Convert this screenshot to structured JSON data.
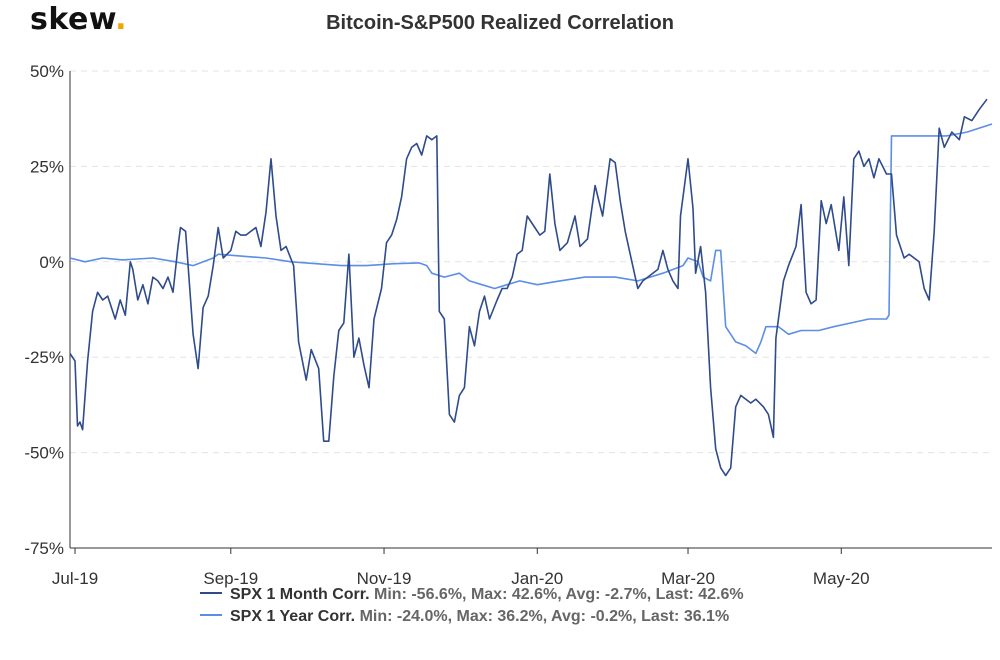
{
  "brand": {
    "logo_text": "skew",
    "logo_dot": "."
  },
  "chart_data": {
    "type": "line",
    "title": "Bitcoin-S&P500 Realized Correlation",
    "xlabel": "",
    "ylabel": "",
    "ylim": [
      -75,
      50
    ],
    "xlim": [
      "2019-06-29",
      "2020-06-30"
    ],
    "yticks": [
      "50%",
      "25%",
      "0%",
      "-25%",
      "-50%",
      "-75%"
    ],
    "ytick_values": [
      50,
      25,
      0,
      -25,
      -50,
      -75
    ],
    "xticks": [
      {
        "label": "Jul-19",
        "date": "2019-07-01"
      },
      {
        "label": "Sep-19",
        "date": "2019-09-01"
      },
      {
        "label": "Nov-19",
        "date": "2019-11-01"
      },
      {
        "label": "Jan-20",
        "date": "2020-01-01"
      },
      {
        "label": "Mar-20",
        "date": "2020-03-01"
      },
      {
        "label": "May-20",
        "date": "2020-05-01"
      }
    ],
    "grid": true,
    "legend_position": "bottom",
    "series": [
      {
        "name": "SPX 1 Month Corr.",
        "color": "#2f4b8c",
        "stats": "Min: -56.6%, Max: 42.6%, Avg: -2.7%, Last: 42.6%",
        "points": [
          [
            "2019-06-29",
            -24
          ],
          [
            "2019-07-01",
            -26
          ],
          [
            "2019-07-02",
            -43
          ],
          [
            "2019-07-03",
            -42
          ],
          [
            "2019-07-04",
            -44
          ],
          [
            "2019-07-06",
            -26
          ],
          [
            "2019-07-08",
            -13
          ],
          [
            "2019-07-10",
            -8
          ],
          [
            "2019-07-12",
            -10
          ],
          [
            "2019-07-14",
            -9
          ],
          [
            "2019-07-17",
            -15
          ],
          [
            "2019-07-19",
            -10
          ],
          [
            "2019-07-21",
            -14
          ],
          [
            "2019-07-23",
            0
          ],
          [
            "2019-07-24",
            -2
          ],
          [
            "2019-07-26",
            -10
          ],
          [
            "2019-07-28",
            -6
          ],
          [
            "2019-07-30",
            -11
          ],
          [
            "2019-08-01",
            -4
          ],
          [
            "2019-08-03",
            -5
          ],
          [
            "2019-08-05",
            -7
          ],
          [
            "2019-08-07",
            -4
          ],
          [
            "2019-08-09",
            -8
          ],
          [
            "2019-08-11",
            4
          ],
          [
            "2019-08-12",
            9
          ],
          [
            "2019-08-14",
            8
          ],
          [
            "2019-08-17",
            -19
          ],
          [
            "2019-08-19",
            -28
          ],
          [
            "2019-08-21",
            -12
          ],
          [
            "2019-08-23",
            -9
          ],
          [
            "2019-08-25",
            -1
          ],
          [
            "2019-08-27",
            9
          ],
          [
            "2019-08-29",
            1
          ],
          [
            "2019-09-01",
            3
          ],
          [
            "2019-09-03",
            8
          ],
          [
            "2019-09-05",
            7
          ],
          [
            "2019-09-07",
            7
          ],
          [
            "2019-09-09",
            8
          ],
          [
            "2019-09-11",
            9
          ],
          [
            "2019-09-13",
            4
          ],
          [
            "2019-09-15",
            13
          ],
          [
            "2019-09-17",
            27
          ],
          [
            "2019-09-19",
            12
          ],
          [
            "2019-09-21",
            3
          ],
          [
            "2019-09-23",
            4
          ],
          [
            "2019-09-26",
            -1
          ],
          [
            "2019-09-28",
            -21
          ],
          [
            "2019-10-01",
            -31
          ],
          [
            "2019-10-03",
            -23
          ],
          [
            "2019-10-06",
            -28
          ],
          [
            "2019-10-08",
            -47
          ],
          [
            "2019-10-10",
            -47
          ],
          [
            "2019-10-12",
            -30
          ],
          [
            "2019-10-14",
            -18
          ],
          [
            "2019-10-16",
            -16
          ],
          [
            "2019-10-18",
            2
          ],
          [
            "2019-10-20",
            -25
          ],
          [
            "2019-10-22",
            -20
          ],
          [
            "2019-10-24",
            -27
          ],
          [
            "2019-10-26",
            -33
          ],
          [
            "2019-10-28",
            -15
          ],
          [
            "2019-10-31",
            -7
          ],
          [
            "2019-11-02",
            5
          ],
          [
            "2019-11-04",
            7
          ],
          [
            "2019-11-06",
            11
          ],
          [
            "2019-11-08",
            17
          ],
          [
            "2019-11-10",
            27
          ],
          [
            "2019-11-12",
            30
          ],
          [
            "2019-11-14",
            31
          ],
          [
            "2019-11-16",
            28
          ],
          [
            "2019-11-18",
            33
          ],
          [
            "2019-11-20",
            32
          ],
          [
            "2019-11-22",
            33
          ],
          [
            "2019-11-23",
            -13
          ],
          [
            "2019-11-25",
            -15
          ],
          [
            "2019-11-27",
            -40
          ],
          [
            "2019-11-29",
            -42
          ],
          [
            "2019-12-01",
            -35
          ],
          [
            "2019-12-03",
            -33
          ],
          [
            "2019-12-05",
            -17
          ],
          [
            "2019-12-07",
            -22
          ],
          [
            "2019-12-09",
            -13
          ],
          [
            "2019-12-11",
            -9
          ],
          [
            "2019-12-13",
            -15
          ],
          [
            "2019-12-16",
            -10
          ],
          [
            "2019-12-18",
            -7
          ],
          [
            "2019-12-20",
            -7
          ],
          [
            "2019-12-22",
            -4
          ],
          [
            "2019-12-24",
            2
          ],
          [
            "2019-12-26",
            3
          ],
          [
            "2019-12-28",
            12
          ],
          [
            "2019-12-31",
            9
          ],
          [
            "2020-01-02",
            7
          ],
          [
            "2020-01-04",
            8
          ],
          [
            "2020-01-06",
            23
          ],
          [
            "2020-01-08",
            10
          ],
          [
            "2020-01-10",
            3
          ],
          [
            "2020-01-13",
            5
          ],
          [
            "2020-01-16",
            12
          ],
          [
            "2020-01-18",
            4
          ],
          [
            "2020-01-21",
            6
          ],
          [
            "2020-01-24",
            20
          ],
          [
            "2020-01-27",
            12
          ],
          [
            "2020-01-30",
            27
          ],
          [
            "2020-02-01",
            26
          ],
          [
            "2020-02-03",
            16
          ],
          [
            "2020-02-05",
            8
          ],
          [
            "2020-02-08",
            -1
          ],
          [
            "2020-02-10",
            -7
          ],
          [
            "2020-02-12",
            -5
          ],
          [
            "2020-02-14",
            -4
          ],
          [
            "2020-02-16",
            -3
          ],
          [
            "2020-02-18",
            -2
          ],
          [
            "2020-02-20",
            3
          ],
          [
            "2020-02-22",
            -2
          ],
          [
            "2020-02-24",
            -5
          ],
          [
            "2020-02-26",
            -7
          ],
          [
            "2020-02-27",
            12
          ],
          [
            "2020-03-01",
            27
          ],
          [
            "2020-03-03",
            14
          ],
          [
            "2020-03-04",
            -3
          ],
          [
            "2020-03-06",
            4
          ],
          [
            "2020-03-08",
            -8
          ],
          [
            "2020-03-10",
            -33
          ],
          [
            "2020-03-12",
            -49
          ],
          [
            "2020-03-14",
            -54
          ],
          [
            "2020-03-16",
            -56
          ],
          [
            "2020-03-18",
            -54
          ],
          [
            "2020-03-20",
            -38
          ],
          [
            "2020-03-22",
            -35
          ],
          [
            "2020-03-24",
            -36
          ],
          [
            "2020-03-26",
            -37
          ],
          [
            "2020-03-28",
            -36
          ],
          [
            "2020-03-31",
            -38
          ],
          [
            "2020-04-02",
            -40
          ],
          [
            "2020-04-04",
            -46
          ],
          [
            "2020-04-05",
            -20
          ],
          [
            "2020-04-08",
            -5
          ],
          [
            "2020-04-10",
            -1
          ],
          [
            "2020-04-13",
            4
          ],
          [
            "2020-04-15",
            15
          ],
          [
            "2020-04-17",
            -8
          ],
          [
            "2020-04-19",
            -11
          ],
          [
            "2020-04-21",
            -10
          ],
          [
            "2020-04-23",
            16
          ],
          [
            "2020-04-25",
            10
          ],
          [
            "2020-04-27",
            15
          ],
          [
            "2020-04-30",
            3
          ],
          [
            "2020-05-02",
            17
          ],
          [
            "2020-05-04",
            -1
          ],
          [
            "2020-05-06",
            27
          ],
          [
            "2020-05-08",
            29
          ],
          [
            "2020-05-10",
            25
          ],
          [
            "2020-05-12",
            27
          ],
          [
            "2020-05-14",
            22
          ],
          [
            "2020-05-16",
            27
          ],
          [
            "2020-05-19",
            23
          ],
          [
            "2020-05-21",
            23
          ],
          [
            "2020-05-23",
            7
          ],
          [
            "2020-05-26",
            1
          ],
          [
            "2020-05-28",
            2
          ],
          [
            "2020-06-01",
            0
          ],
          [
            "2020-06-03",
            -7
          ],
          [
            "2020-06-05",
            -10
          ],
          [
            "2020-06-07",
            8
          ],
          [
            "2020-06-09",
            35
          ],
          [
            "2020-06-11",
            30
          ],
          [
            "2020-06-14",
            34
          ],
          [
            "2020-06-17",
            32
          ],
          [
            "2020-06-19",
            38
          ],
          [
            "2020-06-22",
            37
          ],
          [
            "2020-06-25",
            40
          ],
          [
            "2020-06-28",
            42.6
          ]
        ]
      },
      {
        "name": "SPX 1 Year Corr.",
        "color": "#5b8ee6",
        "stats": "Min: -24.0%, Max: 36.2%, Avg: -0.2%, Last: 36.1%",
        "points": [
          [
            "2019-06-29",
            1
          ],
          [
            "2019-07-05",
            0
          ],
          [
            "2019-07-12",
            1
          ],
          [
            "2019-07-20",
            0.5
          ],
          [
            "2019-08-01",
            1
          ],
          [
            "2019-08-10",
            0
          ],
          [
            "2019-08-17",
            -1
          ],
          [
            "2019-08-25",
            1
          ],
          [
            "2019-08-27",
            2
          ],
          [
            "2019-09-05",
            1.5
          ],
          [
            "2019-09-15",
            1
          ],
          [
            "2019-09-25",
            0
          ],
          [
            "2019-10-05",
            -0.5
          ],
          [
            "2019-10-15",
            -1
          ],
          [
            "2019-10-25",
            -1
          ],
          [
            "2019-11-05",
            -0.5
          ],
          [
            "2019-11-15",
            -0.3
          ],
          [
            "2019-11-18",
            -1
          ],
          [
            "2019-11-20",
            -3
          ],
          [
            "2019-11-25",
            -4
          ],
          [
            "2019-12-01",
            -3
          ],
          [
            "2019-12-05",
            -5
          ],
          [
            "2019-12-10",
            -6
          ],
          [
            "2019-12-15",
            -7
          ],
          [
            "2019-12-20",
            -6
          ],
          [
            "2019-12-25",
            -5
          ],
          [
            "2020-01-01",
            -6
          ],
          [
            "2020-01-10",
            -5
          ],
          [
            "2020-01-20",
            -4
          ],
          [
            "2020-02-01",
            -4
          ],
          [
            "2020-02-10",
            -5
          ],
          [
            "2020-02-20",
            -3
          ],
          [
            "2020-02-28",
            -1
          ],
          [
            "2020-03-01",
            1
          ],
          [
            "2020-03-05",
            0
          ],
          [
            "2020-03-07",
            -4
          ],
          [
            "2020-03-10",
            -5
          ],
          [
            "2020-03-12",
            3
          ],
          [
            "2020-03-14",
            3
          ],
          [
            "2020-03-16",
            -17
          ],
          [
            "2020-03-20",
            -21
          ],
          [
            "2020-03-24",
            -22
          ],
          [
            "2020-03-28",
            -24
          ],
          [
            "2020-03-30",
            -21
          ],
          [
            "2020-04-01",
            -17
          ],
          [
            "2020-04-06",
            -17
          ],
          [
            "2020-04-10",
            -19
          ],
          [
            "2020-04-15",
            -18
          ],
          [
            "2020-04-22",
            -18
          ],
          [
            "2020-04-28",
            -17
          ],
          [
            "2020-05-05",
            -16
          ],
          [
            "2020-05-12",
            -15
          ],
          [
            "2020-05-19",
            -15
          ],
          [
            "2020-05-20",
            -14
          ],
          [
            "2020-05-21",
            33
          ],
          [
            "2020-05-28",
            33
          ],
          [
            "2020-06-05",
            33
          ],
          [
            "2020-06-12",
            33
          ],
          [
            "2020-06-20",
            34
          ],
          [
            "2020-06-30",
            36.1
          ]
        ]
      }
    ]
  }
}
